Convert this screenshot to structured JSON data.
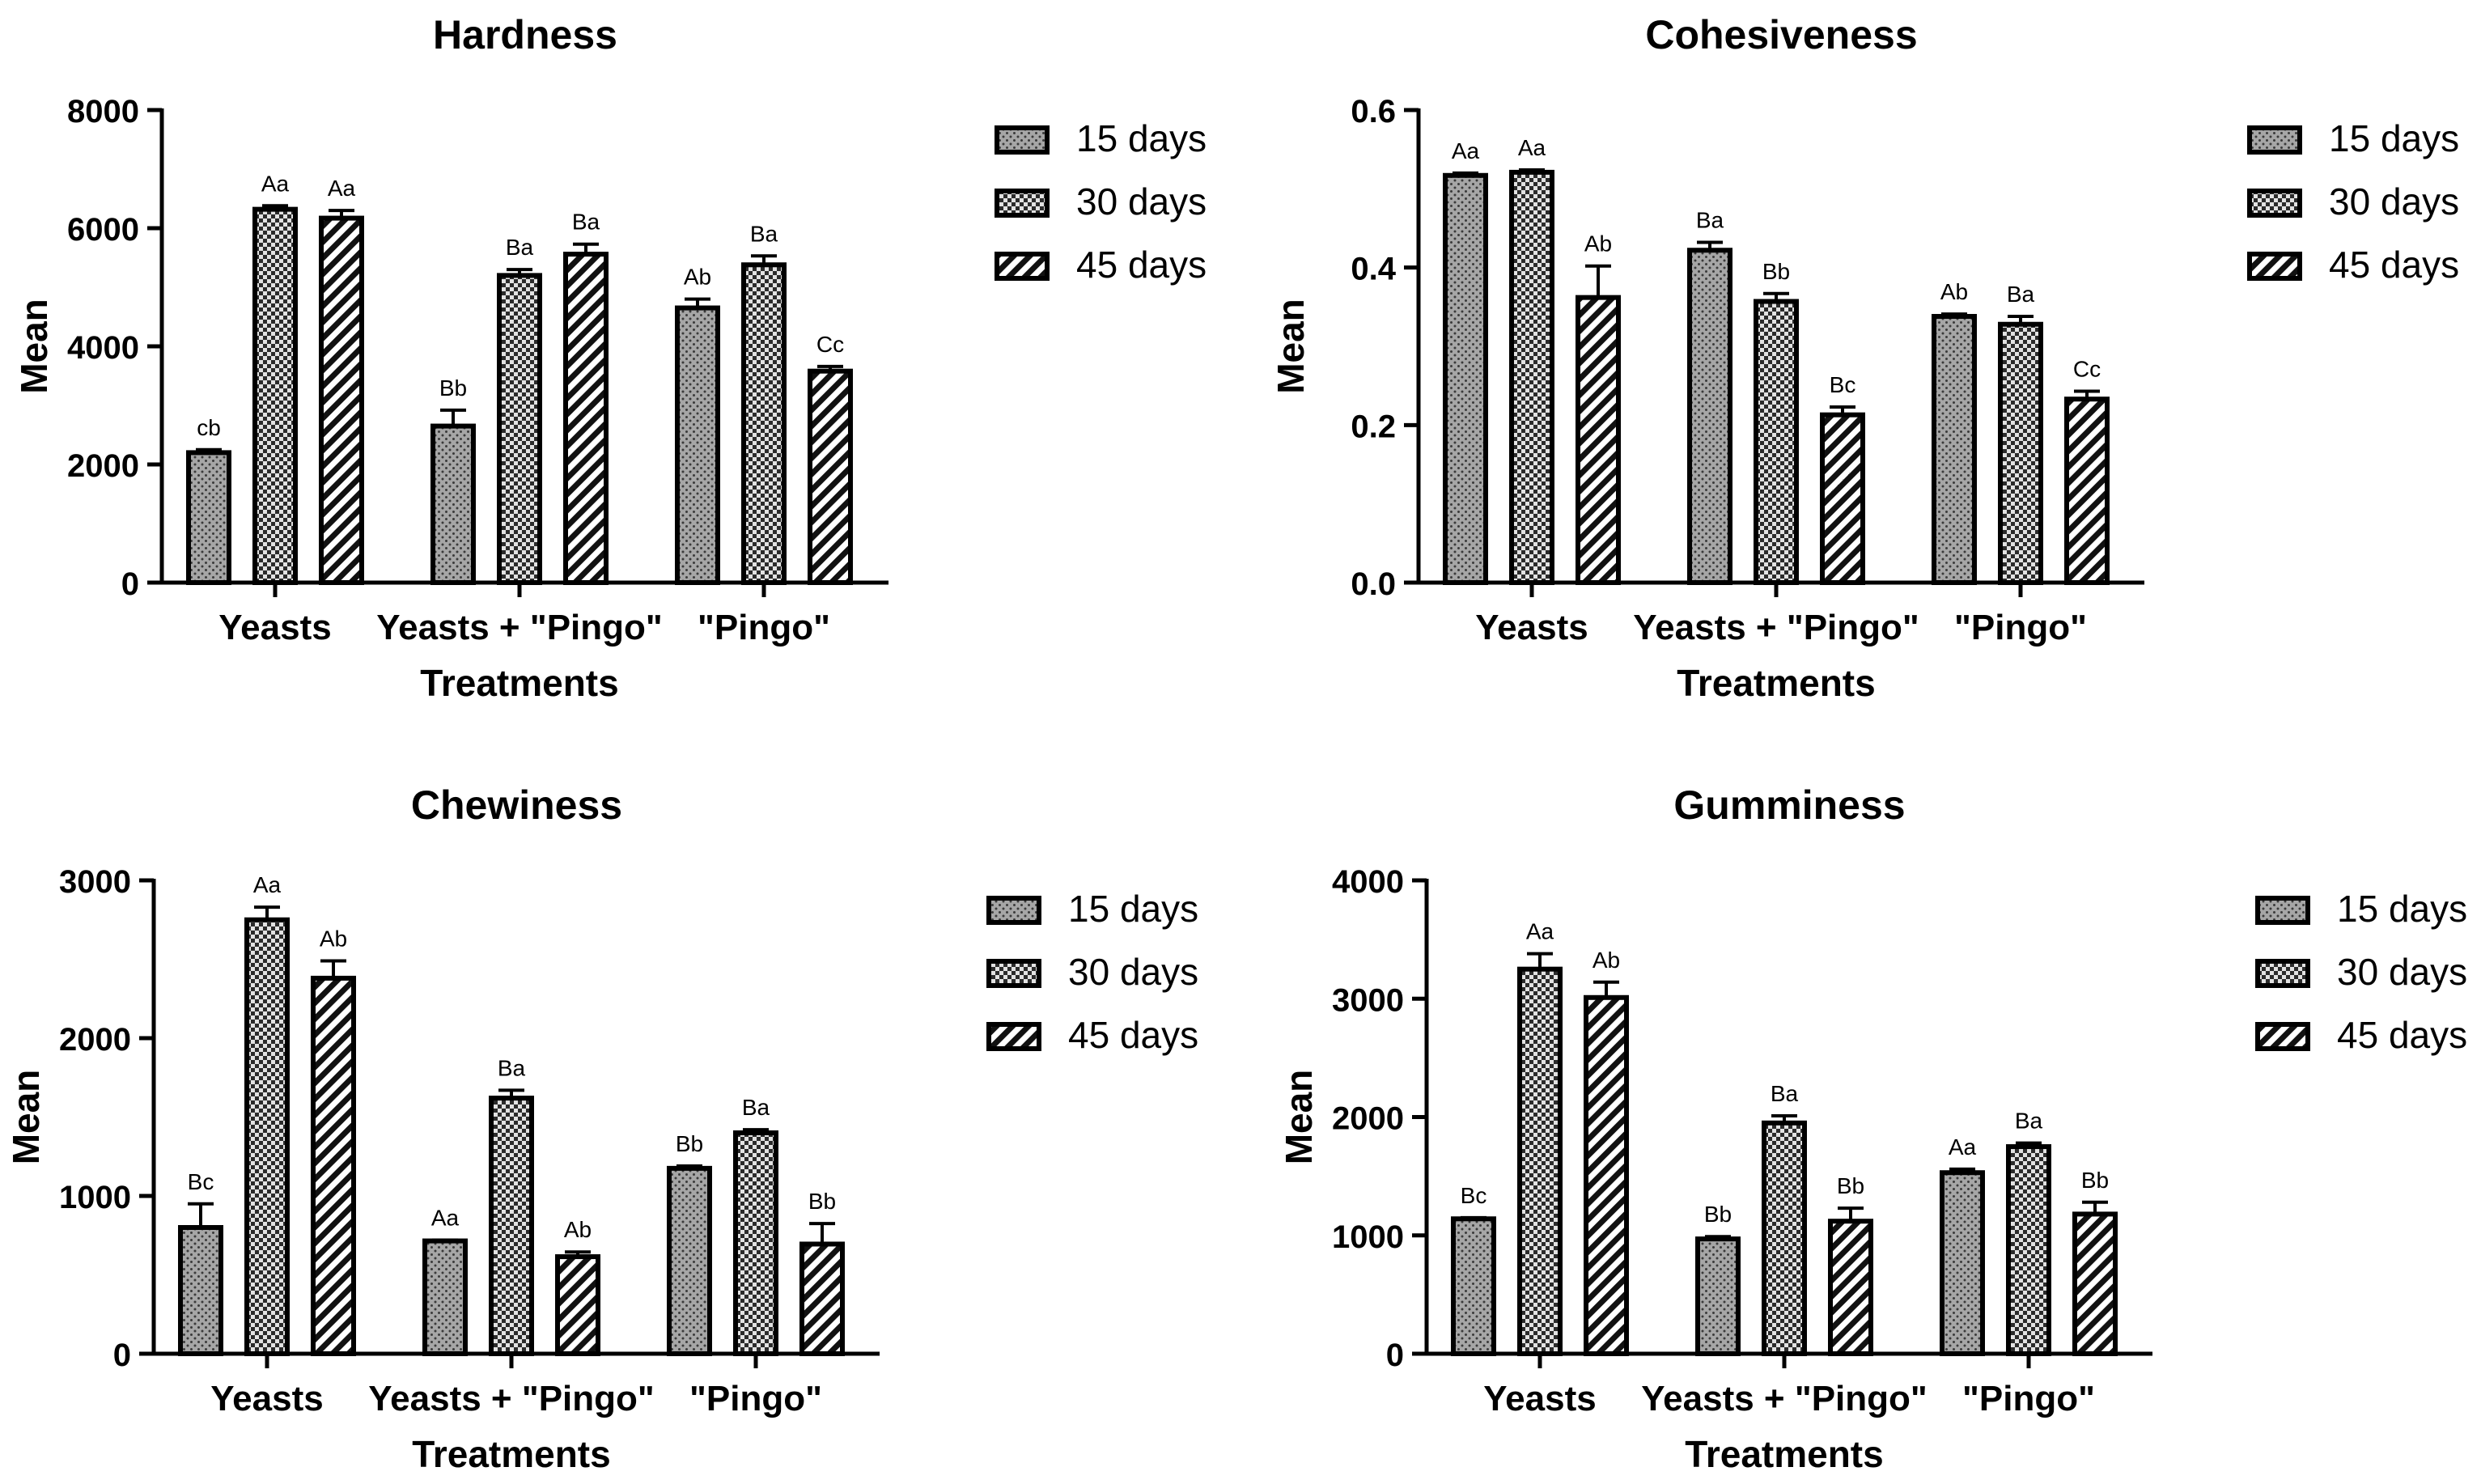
{
  "chart_data": [
    {
      "type": "bar",
      "title": "Hardness",
      "xlabel": "Treatments",
      "ylabel": "Mean",
      "categories": [
        "Yeasts",
        "Yeasts + \"Pingo\"",
        "\"Pingo\""
      ],
      "ylim": [
        0,
        8000
      ],
      "yticks": [
        0,
        2000,
        4000,
        6000,
        8000
      ],
      "tick_labels": [
        "0",
        "2000",
        "4000",
        "6000",
        "8000"
      ],
      "grid": false,
      "legend_position": "right",
      "series": [
        {
          "name": "15 days",
          "pattern": "dots",
          "values": [
            2200,
            2650,
            4650
          ],
          "errors": [
            50,
            270,
            150
          ],
          "labels": [
            "cb",
            "Bb",
            "Ab"
          ]
        },
        {
          "name": "30 days",
          "pattern": "check",
          "values": [
            6320,
            5200,
            5380
          ],
          "errors": [
            60,
            100,
            150
          ],
          "labels": [
            "Aa",
            "Ba",
            "Ba"
          ]
        },
        {
          "name": "45 days",
          "pattern": "hatch",
          "values": [
            6170,
            5560,
            3580
          ],
          "errors": [
            130,
            170,
            80
          ],
          "labels": [
            "Aa",
            "Ba",
            "Cc"
          ]
        }
      ]
    },
    {
      "type": "bar",
      "title": "Cohesiveness",
      "xlabel": "Treatments",
      "ylabel": "Mean",
      "categories": [
        "Yeasts",
        "Yeasts + \"Pingo\"",
        "\"Pingo\""
      ],
      "ylim": [
        0,
        0.6
      ],
      "yticks": [
        0,
        0.2,
        0.4,
        0.6
      ],
      "tick_labels": [
        "0.0",
        "0.2",
        "0.4",
        "0.6"
      ],
      "grid": false,
      "legend_position": "right",
      "series": [
        {
          "name": "15 days",
          "pattern": "dots",
          "values": [
            0.517,
            0.422,
            0.338
          ],
          "errors": [
            0.003,
            0.01,
            0.003
          ],
          "labels": [
            "Aa",
            "Ba",
            "Ab"
          ]
        },
        {
          "name": "30 days",
          "pattern": "check",
          "values": [
            0.521,
            0.357,
            0.328
          ],
          "errors": [
            0.003,
            0.01,
            0.01
          ],
          "labels": [
            "Aa",
            "Bb",
            "Ba"
          ]
        },
        {
          "name": "45 days",
          "pattern": "hatch",
          "values": [
            0.362,
            0.213,
            0.233
          ],
          "errors": [
            0.04,
            0.01,
            0.01
          ],
          "labels": [
            "Ab",
            "Bc",
            "Cc"
          ]
        }
      ]
    },
    {
      "type": "bar",
      "title": "Chewiness",
      "xlabel": "Treatments",
      "ylabel": "Mean",
      "categories": [
        "Yeasts",
        "Yeasts + \"Pingo\"",
        "\"Pingo\""
      ],
      "ylim": [
        0,
        3000
      ],
      "yticks": [
        0,
        1000,
        2000,
        3000
      ],
      "tick_labels": [
        "0",
        "1000",
        "2000",
        "3000"
      ],
      "grid": false,
      "legend_position": "right",
      "series": [
        {
          "name": "15 days",
          "pattern": "dots",
          "values": [
            800,
            715,
            1175
          ],
          "errors": [
            150,
            5,
            15
          ],
          "labels": [
            "Bc",
            "Aa",
            "Bb"
          ]
        },
        {
          "name": "30 days",
          "pattern": "check",
          "values": [
            2750,
            1620,
            1400
          ],
          "errors": [
            80,
            50,
            20
          ],
          "labels": [
            "Aa",
            "Ba",
            "Ba"
          ]
        },
        {
          "name": "45 days",
          "pattern": "hatch",
          "values": [
            2380,
            615,
            695
          ],
          "errors": [
            110,
            30,
            130
          ],
          "labels": [
            "Ab",
            "Ab",
            "Bb"
          ]
        }
      ]
    },
    {
      "type": "bar",
      "title": "Gumminess",
      "xlabel": "Treatments",
      "ylabel": "Mean",
      "categories": [
        "Yeasts",
        "Yeasts + \"Pingo\"",
        "\"Pingo\""
      ],
      "ylim": [
        0,
        4000
      ],
      "yticks": [
        0,
        1000,
        2000,
        3000,
        4000
      ],
      "tick_labels": [
        "0",
        "1000",
        "2000",
        "3000",
        "4000"
      ],
      "grid": false,
      "legend_position": "right",
      "series": [
        {
          "name": "15 days",
          "pattern": "dots",
          "values": [
            1140,
            970,
            1530
          ],
          "errors": [
            10,
            20,
            30
          ],
          "labels": [
            "Bc",
            "Bb",
            "Aa"
          ]
        },
        {
          "name": "30 days",
          "pattern": "check",
          "values": [
            3250,
            1950,
            1750
          ],
          "errors": [
            130,
            60,
            30
          ],
          "labels": [
            "Aa",
            "Ba",
            "Ba"
          ]
        },
        {
          "name": "45 days",
          "pattern": "hatch",
          "values": [
            3010,
            1120,
            1180
          ],
          "errors": [
            130,
            110,
            100
          ],
          "labels": [
            "Ab",
            "Bb",
            "Bb"
          ]
        }
      ]
    }
  ]
}
